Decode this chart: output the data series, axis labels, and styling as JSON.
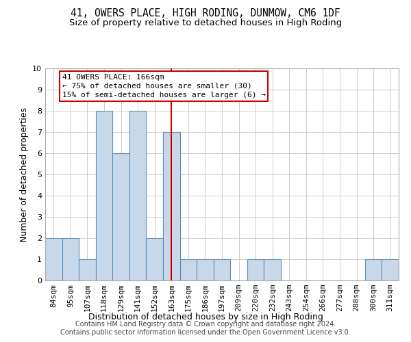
{
  "title": "41, OWERS PLACE, HIGH RODING, DUNMOW, CM6 1DF",
  "subtitle": "Size of property relative to detached houses in High Roding",
  "xlabel": "Distribution of detached houses by size in High Roding",
  "ylabel": "Number of detached properties",
  "categories": [
    "84sqm",
    "95sqm",
    "107sqm",
    "118sqm",
    "129sqm",
    "141sqm",
    "152sqm",
    "163sqm",
    "175sqm",
    "186sqm",
    "197sqm",
    "209sqm",
    "220sqm",
    "232sqm",
    "243sqm",
    "254sqm",
    "266sqm",
    "277sqm",
    "288sqm",
    "300sqm",
    "311sqm"
  ],
  "values": [
    2,
    2,
    1,
    8,
    6,
    8,
    2,
    7,
    1,
    1,
    1,
    0,
    1,
    1,
    0,
    0,
    0,
    0,
    0,
    1,
    1
  ],
  "bar_color": "#c8d8e8",
  "bar_edge_color": "#5b8db8",
  "highlight_index": 7,
  "highlight_line_color": "#cc0000",
  "annotation_line1": "41 OWERS PLACE: 166sqm",
  "annotation_line2": "← 75% of detached houses are smaller (30)",
  "annotation_line3": "15% of semi-detached houses are larger (6) →",
  "annotation_box_color": "#ffffff",
  "annotation_box_edge": "#cc0000",
  "ylim": [
    0,
    10
  ],
  "yticks": [
    0,
    1,
    2,
    3,
    4,
    5,
    6,
    7,
    8,
    9,
    10
  ],
  "footer_line1": "Contains HM Land Registry data © Crown copyright and database right 2024.",
  "footer_line2": "Contains public sector information licensed under the Open Government Licence v3.0.",
  "title_fontsize": 10.5,
  "subtitle_fontsize": 9.5,
  "axis_label_fontsize": 9,
  "tick_fontsize": 8,
  "annotation_fontsize": 8,
  "footer_fontsize": 7
}
